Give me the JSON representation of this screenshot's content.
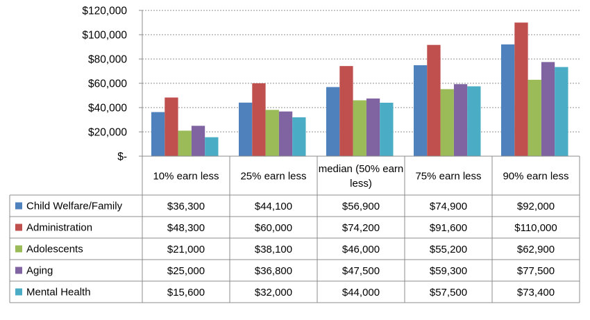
{
  "chart_data": {
    "type": "bar",
    "categories": [
      "10% earn less",
      "25% earn less",
      "median (50% earn less)",
      "75% earn less",
      "90% earn less"
    ],
    "series": [
      {
        "name": "Child Welfare/Family",
        "color": "#4f81bd",
        "values": [
          36300,
          44100,
          56900,
          74900,
          92000
        ],
        "labels": [
          "$36,300",
          "$44,100",
          "$56,900",
          "$74,900",
          "$92,000"
        ]
      },
      {
        "name": "Administration",
        "color": "#c0504d",
        "values": [
          48300,
          60000,
          74200,
          91600,
          110000
        ],
        "labels": [
          "$48,300",
          "$60,000",
          "$74,200",
          "$91,600",
          "$110,000"
        ]
      },
      {
        "name": "Adolescents",
        "color": "#9bbb59",
        "values": [
          21000,
          38100,
          46000,
          55200,
          62900
        ],
        "labels": [
          "$21,000",
          "$38,100",
          "$46,000",
          "$55,200",
          "$62,900"
        ]
      },
      {
        "name": "Aging",
        "color": "#8064a2",
        "values": [
          25000,
          36800,
          47500,
          59300,
          77500
        ],
        "labels": [
          "$25,000",
          "$36,800",
          "$47,500",
          "$59,300",
          "$77,500"
        ]
      },
      {
        "name": "Mental Health",
        "color": "#4bacc6",
        "values": [
          15600,
          32000,
          44000,
          57500,
          73400
        ],
        "labels": [
          "$15,600",
          "$32,000",
          "$44,000",
          "$57,500",
          "$73,400"
        ]
      }
    ],
    "ylim": [
      0,
      120000
    ],
    "yticks": [
      0,
      20000,
      40000,
      60000,
      80000,
      100000,
      120000
    ],
    "ytick_labels": [
      "$-",
      "$20,000",
      "$40,000",
      "$60,000",
      "$80,000",
      "$100,000",
      "$120,000"
    ],
    "grid": "horizontal dashed",
    "legend": "data table"
  }
}
